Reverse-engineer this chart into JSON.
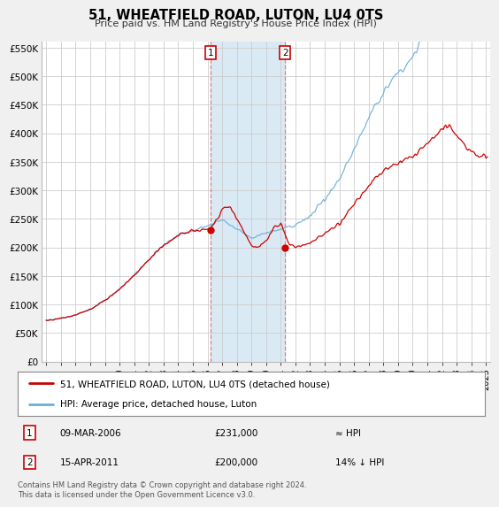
{
  "title": "51, WHEATFIELD ROAD, LUTON, LU4 0TS",
  "subtitle": "Price paid vs. HM Land Registry's House Price Index (HPI)",
  "footer": "Contains HM Land Registry data © Crown copyright and database right 2024.\nThis data is licensed under the Open Government Licence v3.0.",
  "legend_line1": "51, WHEATFIELD ROAD, LUTON, LU4 0TS (detached house)",
  "legend_line2": "HPI: Average price, detached house, Luton",
  "transaction1_date": "09-MAR-2006",
  "transaction1_price": "£231,000",
  "transaction1_hpi": "≈ HPI",
  "transaction2_date": "15-APR-2011",
  "transaction2_price": "£200,000",
  "transaction2_hpi": "14% ↓ HPI",
  "transaction1_x": 2006.19,
  "transaction1_y": 231000,
  "transaction2_x": 2011.29,
  "transaction2_y": 200000,
  "ylim": [
    0,
    560000
  ],
  "xlim_start": 1994.7,
  "xlim_end": 2025.3,
  "hpi_color": "#6aaed6",
  "price_color": "#cc0000",
  "background_color": "#f0f0f0",
  "plot_bg_color": "#ffffff",
  "shade_color": "#daeaf5",
  "shade_start": 2006.19,
  "shade_end": 2011.29
}
